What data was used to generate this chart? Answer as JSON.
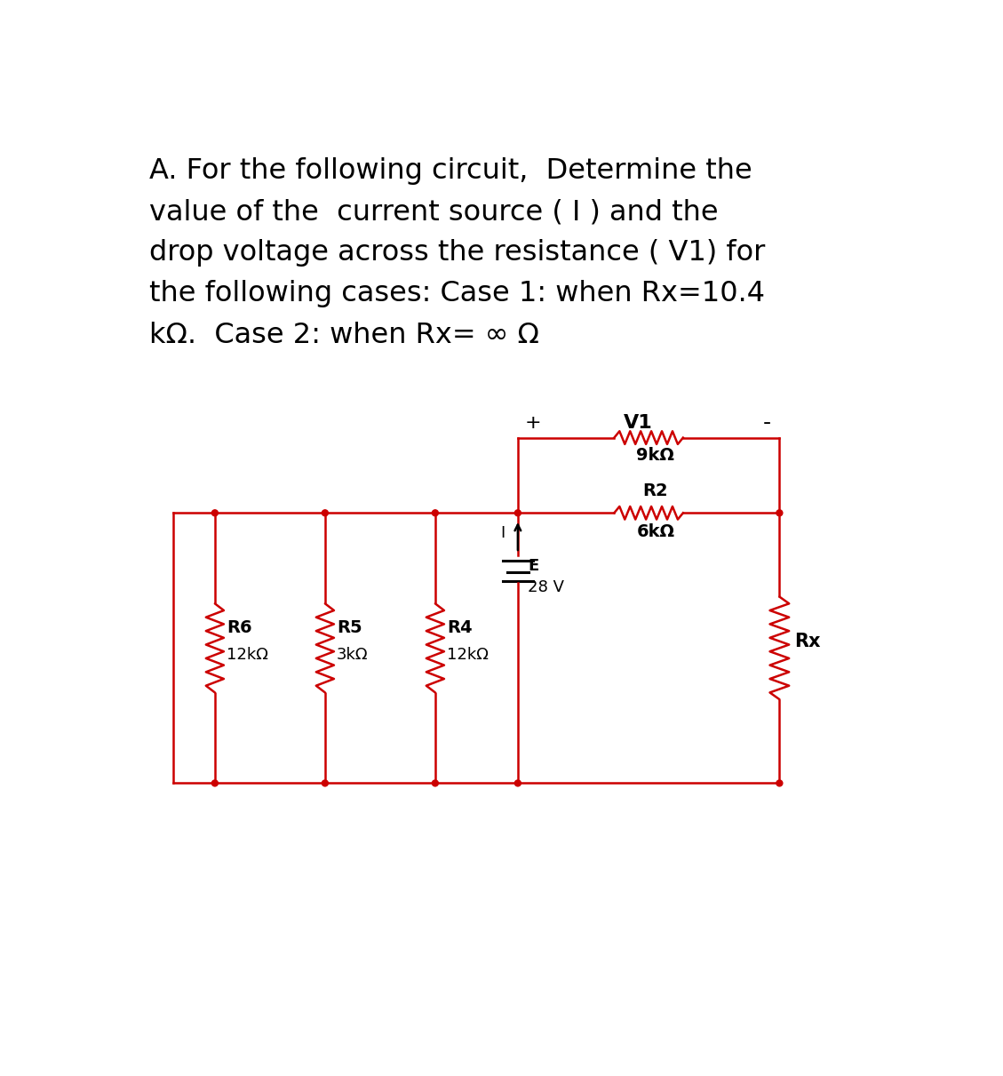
{
  "background_color": "#ffffff",
  "text_color": "#000000",
  "circuit_color": "#cc0000",
  "title_lines": [
    "A. For the following circuit,  Determine the",
    "value of the  current source ( I ) and the",
    "drop voltage across the resistance ( V1) for",
    "the following cases: Case 1: when Rx=10.4",
    "kΩ.  Case 2: when Rx= ∞ Ω"
  ],
  "title_fontsize": 23,
  "fig_width": 11.29,
  "fig_height": 12.11,
  "dpi": 100,
  "lw": 1.8
}
